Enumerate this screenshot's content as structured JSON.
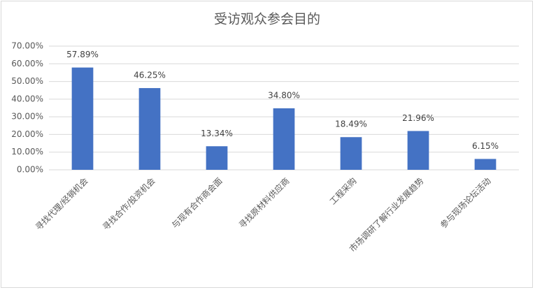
{
  "chart_data": {
    "type": "bar",
    "title": "受访观众参会目的",
    "categories": [
      "寻找代理/经销机会",
      "寻找合作/投资机会",
      "与现有合作商会面",
      "寻找原材料供应商",
      "工程采购",
      "市场调研了解行业发展趋势",
      "参与现场论坛活动"
    ],
    "values": [
      57.89,
      46.25,
      13.34,
      34.8,
      18.49,
      21.96,
      6.15
    ],
    "value_labels": [
      "57.89%",
      "46.25%",
      "13.34%",
      "34.80%",
      "18.49%",
      "21.96%",
      "6.15%"
    ],
    "color": "#4472c4",
    "ylim": [
      0,
      70
    ],
    "yticks": [
      {
        "value": 0,
        "label": "0.00%"
      },
      {
        "value": 10,
        "label": "10.00%"
      },
      {
        "value": 20,
        "label": "20.00%"
      },
      {
        "value": 30,
        "label": "30.00%"
      },
      {
        "value": 40,
        "label": "40.00%"
      },
      {
        "value": 50,
        "label": "50.00%"
      },
      {
        "value": 60,
        "label": "60.00%"
      },
      {
        "value": 70,
        "label": "70.00%"
      }
    ],
    "grid": true
  }
}
